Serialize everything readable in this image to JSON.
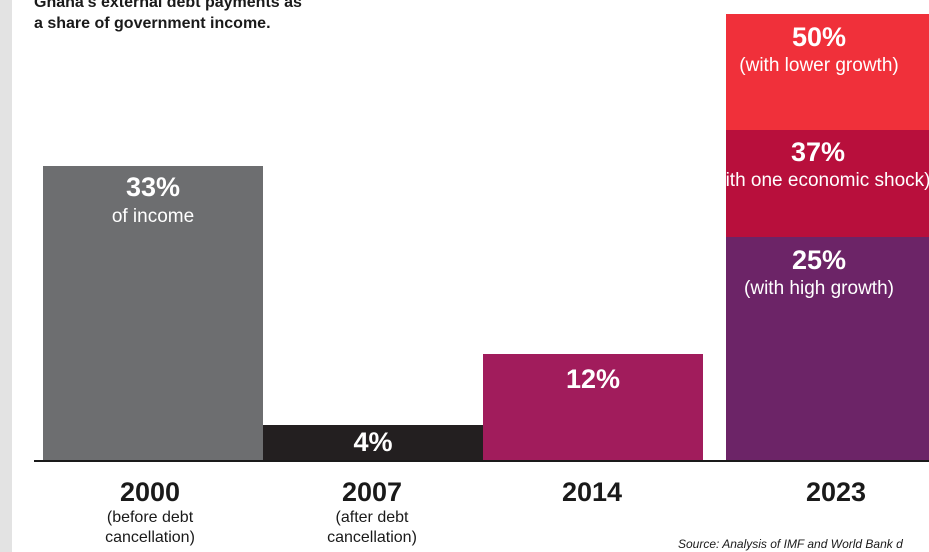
{
  "title_lines": [
    "Ghana's external debt payments as",
    "a share of government income."
  ],
  "chart_data": {
    "type": "bar",
    "categories": [
      "2000",
      "2007",
      "2014",
      "2023"
    ],
    "category_notes": [
      "(before debt cancellation)",
      "(after debt cancellation)",
      "",
      ""
    ],
    "values": [
      33,
      4,
      12,
      50
    ],
    "unit": "% of government income",
    "bar_labels": [
      {
        "pct": "33%",
        "desc": "of income"
      },
      {
        "pct": "4%",
        "desc": ""
      },
      {
        "pct": "12%",
        "desc": ""
      }
    ],
    "scenarios_2023": [
      {
        "pct": "50%",
        "desc": "(with lower growth)",
        "value": 50,
        "color": "#f0303a"
      },
      {
        "pct": "37%",
        "desc": "(with one economic shock)",
        "value": 37,
        "color": "#b80f3c"
      },
      {
        "pct": "25%",
        "desc": "(with high growth)",
        "value": 25,
        "color": "#6c2467"
      }
    ],
    "bar_colors": [
      "#6d6e70",
      "#231f20",
      "#a11c5c"
    ],
    "ylim": [
      0,
      50
    ]
  },
  "source": "Source: Analysis of IMF and World Bank d"
}
